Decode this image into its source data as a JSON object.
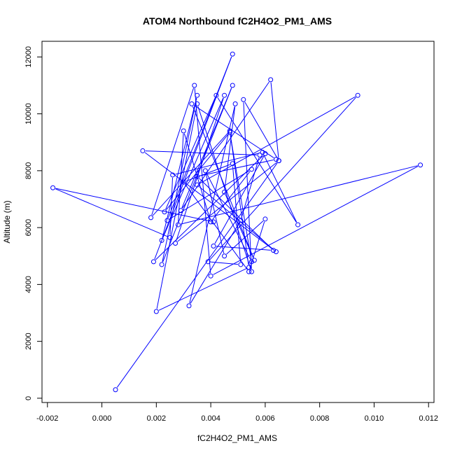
{
  "chart_data": {
    "type": "line",
    "title": "ATOM4 Northbound fC2H4O2_PM1_AMS",
    "xlabel": "fC2H4O2_PM1_AMS",
    "ylabel": "Altitude (m)",
    "xlim": [
      -0.0022,
      0.0122
    ],
    "ylim": [
      -150,
      12550
    ],
    "xticks": [
      -0.002,
      0.0,
      0.002,
      0.004,
      0.006,
      0.008,
      0.01,
      0.012
    ],
    "xtick_labels": [
      "-0.002",
      "0.000",
      "0.002",
      "0.004",
      "0.006",
      "0.008",
      "0.010",
      "0.012"
    ],
    "yticks": [
      0,
      2000,
      4000,
      6000,
      8000,
      10000,
      12000
    ],
    "ytick_labels": [
      "0",
      "2000",
      "4000",
      "6000",
      "8000",
      "10000",
      "12000"
    ],
    "grid": false,
    "legend": "none",
    "series_color": "#0000ff",
    "markers": "open-circle",
    "series": [
      {
        "x": [
          0.0005,
          0.0065,
          0.0062,
          0.0029,
          0.0048,
          0.0022,
          0.0035,
          0.0022,
          0.0045,
          0.0027,
          0.0065,
          0.0052,
          0.0055,
          0.0035,
          0.002,
          0.0054,
          0.0047,
          0.0018,
          0.0034,
          0.004,
          0.0117,
          0.0028,
          0.003,
          0.004,
          0.0055,
          0.0024,
          0.0048,
          0.0019,
          0.006,
          0.0041,
          0.0063,
          0.0035,
          0.0064,
          0.0033,
          0.0056,
          0.0045,
          0.0049,
          0.0032,
          0.0051,
          0.0058,
          0.0015,
          0.0064,
          0.0035,
          0.0094,
          0.0039,
          0.0051,
          0.0048,
          0.003,
          0.0054,
          0.006,
          0.0045,
          0.0038,
          0.0055,
          0.0047,
          0.0023,
          0.0042,
          0.0072,
          0.0059,
          0.0026,
          0.0025,
          -0.0018,
          0.0041
        ],
        "y": [
          300,
          8350,
          11200,
          6600,
          11000,
          4700,
          10650,
          5550,
          10650,
          5450,
          8350,
          10500,
          4450,
          10350,
          3050,
          4600,
          9400,
          6350,
          11000,
          4300,
          8200,
          6100,
          9400,
          6200,
          8050,
          6250,
          12100,
          4800,
          8600,
          5350,
          5200,
          7800,
          8400,
          10350,
          4850,
          7250,
          10350,
          3250,
          6250,
          8550,
          8700,
          5150,
          7500,
          10650,
          4800,
          4700,
          8250,
          7600,
          4450,
          6300,
          5000,
          8000,
          4800,
          9350,
          6550,
          10650,
          6100,
          8650,
          7850,
          5650,
          7400,
          6200
        ]
      }
    ]
  }
}
